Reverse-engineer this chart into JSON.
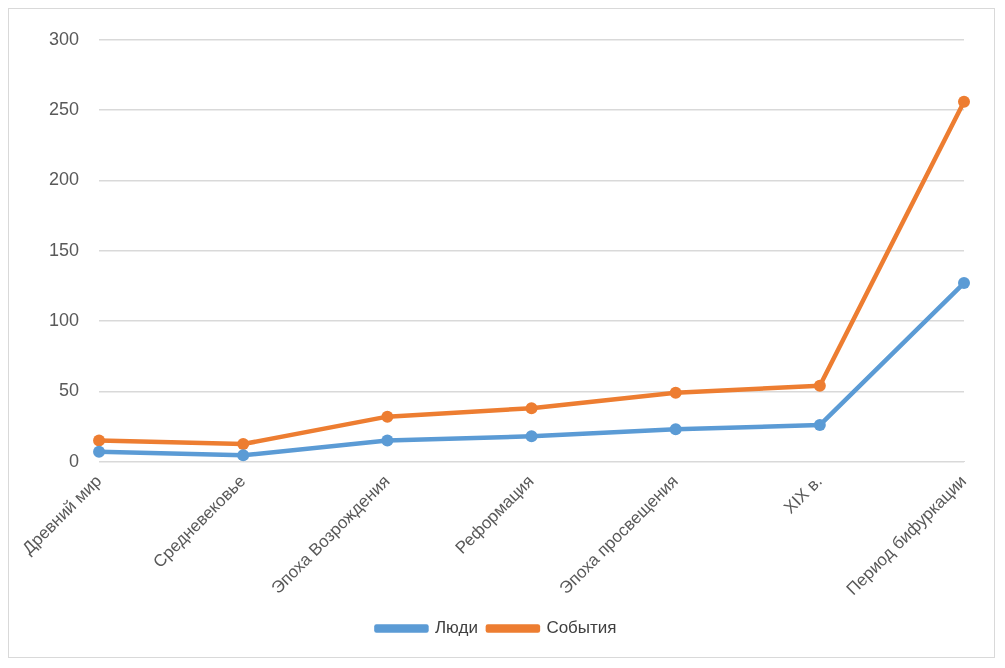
{
  "chart_data": {
    "type": "line",
    "categories": [
      "Древний мир",
      "Средневековье",
      "Эпоха Возрождения",
      "Реформация",
      "Эпоха просвещения",
      "XIX в.",
      "Период бифуркации"
    ],
    "series": [
      {
        "name": "Люди",
        "color": "#5b9bd5",
        "values": [
          7,
          4.5,
          15,
          18,
          23,
          26,
          127
        ]
      },
      {
        "name": "События",
        "color": "#ed7d31",
        "values": [
          15,
          12.5,
          32,
          38,
          49,
          54,
          256
        ]
      }
    ],
    "ylim": [
      0,
      300
    ],
    "yticks": [
      0,
      50,
      100,
      150,
      200,
      250,
      300
    ],
    "grid": "y",
    "legend": "bottom",
    "marker": "circle"
  }
}
